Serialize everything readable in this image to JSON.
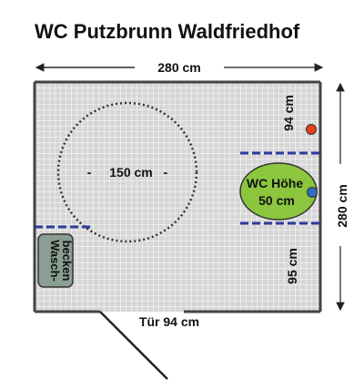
{
  "title": "WC Putzbrunn Waldfriedhof",
  "dimensions": {
    "width_label": "280 cm",
    "depth_label": "280 cm",
    "turning_circle_label": "150 cm",
    "wall_top_label": "94 cm",
    "wall_bottom_label": "95 cm",
    "door_label": "Tür 94 cm"
  },
  "toilet": {
    "height_line1": "WC Höhe",
    "height_line2": "50 cm"
  },
  "sink": {
    "line1": "Wasch-",
    "line2": "becken"
  },
  "colors": {
    "floor_tile": "#d4d4d4",
    "wall": "#444444",
    "toilet_fill": "#8cc63f",
    "grab_bar": "#2b3a9c",
    "sink_fill": "#8a9e93",
    "red_dot": "#e8401c",
    "blue_dot": "#2e6fc0"
  }
}
